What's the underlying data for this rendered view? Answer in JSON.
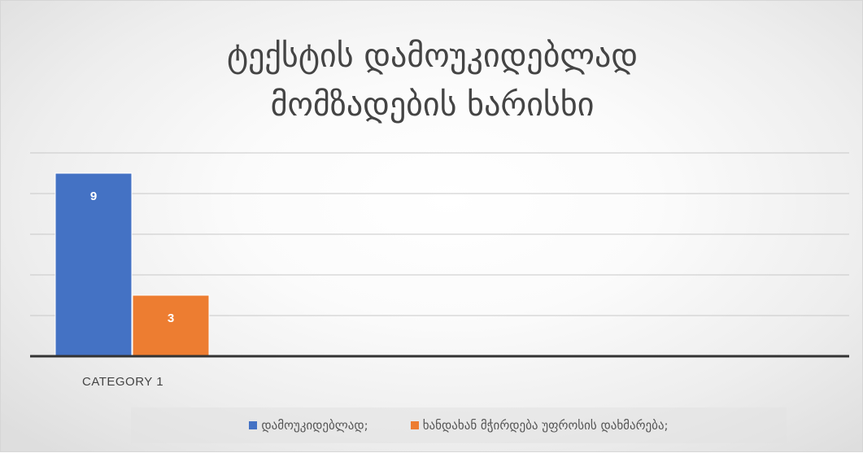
{
  "chart_data": {
    "type": "bar",
    "title_lines": [
      "ტექსტის დამოუკიდებლად",
      "მომზადების ხარისხი"
    ],
    "categories": [
      "CATEGORY 1"
    ],
    "series": [
      {
        "name": "დამოუკიდებლად;",
        "values": [
          9
        ],
        "color": "#4472c4"
      },
      {
        "name": "ხანდახან მჭირდება უფროსის დახმარება;",
        "values": [
          3
        ],
        "color": "#ed7d31"
      }
    ],
    "ylim": [
      0,
      10
    ],
    "grid": true,
    "legend_position": "bottom",
    "data_labels": true
  }
}
